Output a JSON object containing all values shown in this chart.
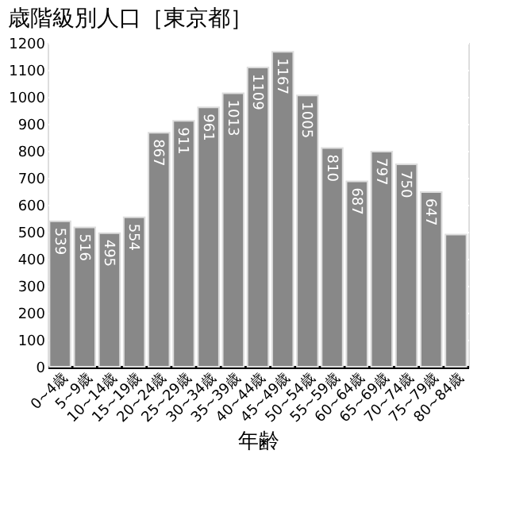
{
  "chart_data": {
    "type": "bar",
    "title": "歳階級別人口［東京都］",
    "xlabel": "年齢",
    "categories": [
      "0~4歳",
      "5~9歳",
      "10~14歳",
      "15~19歳",
      "20~24歳",
      "25~29歳",
      "30~34歳",
      "35~39歳",
      "40~44歳",
      "45~49歳",
      "50~54歳",
      "55~59歳",
      "60~64歳",
      "65~69歳",
      "70~74歳",
      "75~79歳",
      "80~84歳"
    ],
    "values": [
      539,
      516,
      495,
      554,
      867,
      911,
      961,
      1013,
      1109,
      1167,
      1005,
      810,
      687,
      797,
      750,
      647,
      490
    ],
    "value_labels": [
      "539",
      "516",
      "495",
      "554",
      "867",
      "911",
      "961",
      "1013",
      "1109",
      "1167",
      "1005",
      "810",
      "687",
      "797",
      "750",
      "647",
      null
    ],
    "color": "#888888",
    "ylim": [
      0,
      1200
    ],
    "yticks": [
      0,
      100,
      200,
      300,
      400,
      500,
      600,
      700,
      800,
      900,
      1000,
      1100,
      1200
    ],
    "grid": "y"
  }
}
